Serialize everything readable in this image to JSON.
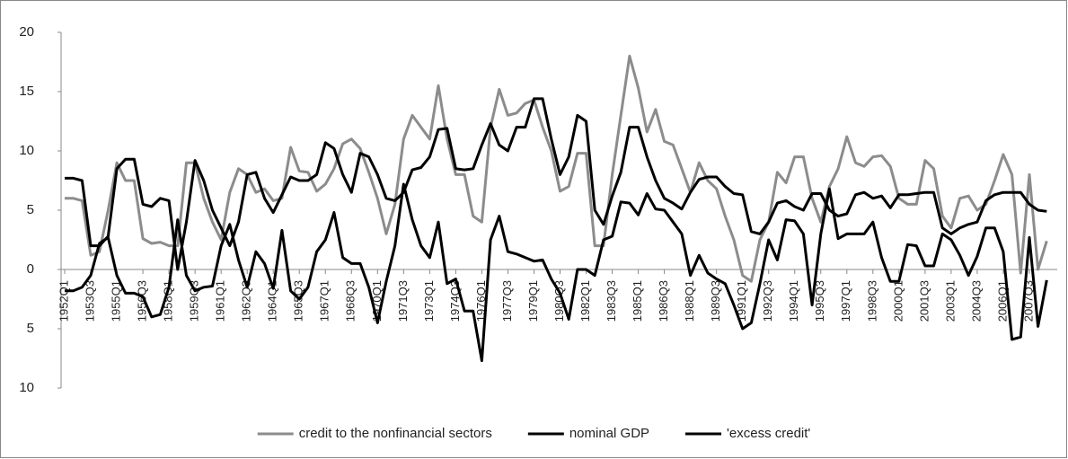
{
  "chart_data": {
    "type": "line",
    "categories": [
      "1952Q1",
      null,
      null,
      "1953Q3",
      null,
      null,
      "1955Q1",
      null,
      null,
      "1956Q3",
      null,
      null,
      "1958Q1",
      null,
      null,
      "1959Q3",
      null,
      null,
      "1961Q1",
      null,
      null,
      "1962Q3",
      null,
      null,
      "1964Q1",
      null,
      null,
      "1965Q3",
      null,
      null,
      "1967Q1",
      null,
      null,
      "1968Q3",
      null,
      null,
      "1970Q1",
      null,
      null,
      "1971Q3",
      null,
      null,
      "1973Q1",
      null,
      null,
      "1974Q3",
      null,
      null,
      "1976Q1",
      null,
      null,
      "1977Q3",
      null,
      null,
      "1979Q1",
      null,
      null,
      "1980Q3",
      null,
      null,
      "1982Q1",
      null,
      null,
      "1983Q3",
      null,
      null,
      "1985Q1",
      null,
      null,
      "1986Q3",
      null,
      null,
      "1988Q1",
      null,
      null,
      "1989Q3",
      null,
      null,
      "1991Q1",
      null,
      null,
      "1992Q3",
      null,
      null,
      "1994Q1",
      null,
      null,
      "1995Q3",
      null,
      null,
      "1997Q1",
      null,
      null,
      "1998Q3",
      null,
      null,
      "2000Q1",
      null,
      null,
      "2001Q3",
      null,
      null,
      "2003Q1",
      null,
      null,
      "2004Q3",
      null,
      null,
      "2006Q1",
      null,
      null,
      "2007Q3",
      null,
      null
    ],
    "series": [
      {
        "name": "credit to the nonfinancial sectors",
        "color": "#8c8c8c",
        "values": [
          6,
          6,
          5.8,
          1.2,
          1.5,
          5,
          9,
          7.5,
          7.5,
          2.6,
          2.2,
          2.3,
          2,
          2,
          9,
          9,
          6,
          4,
          2.5,
          6.5,
          8.5,
          8,
          6.5,
          6.8,
          5.8,
          6,
          10.3,
          8.3,
          8.2,
          6.6,
          7.2,
          8.5,
          10.6,
          11,
          10.2,
          8.2,
          6,
          3,
          5.5,
          11,
          13,
          12,
          11,
          15.5,
          11,
          8,
          8,
          4.5,
          4,
          12,
          15.2,
          13,
          13.2,
          14,
          14.3,
          12,
          10,
          6.6,
          7,
          9.8,
          9.8,
          2,
          2,
          8,
          13,
          18,
          15.3,
          11.6,
          13.5,
          10.8,
          10.5,
          8.5,
          6.5,
          9,
          7.5,
          6.8,
          4.5,
          2.5,
          -0.5,
          -1,
          2.5,
          4,
          8.2,
          7.3,
          9.5,
          9.5,
          6,
          4,
          7,
          8.5,
          11.2,
          9,
          8.7,
          9.5,
          9.6,
          8.7,
          6,
          5.5,
          5.5,
          9.2,
          8.5,
          4.5,
          3.5,
          6,
          6.2,
          5,
          5.5,
          7.5,
          9.7,
          8,
          -0.3,
          8,
          0,
          2.4
        ]
      },
      {
        "name": "nominal GDP",
        "color": "#000000",
        "values": [
          7.7,
          7.7,
          7.5,
          2,
          2,
          2.8,
          8.5,
          9.3,
          9.3,
          5.5,
          5.3,
          6,
          5.8,
          0,
          4,
          9.2,
          7.5,
          5,
          3.5,
          2,
          4,
          8,
          8.2,
          6,
          4.8,
          6.3,
          7.8,
          7.5,
          7.5,
          8,
          10.7,
          10.2,
          8,
          6.5,
          9.8,
          9.5,
          8,
          6,
          5.8,
          6.5,
          8.4,
          8.6,
          9.5,
          11.8,
          11.9,
          8.5,
          8.4,
          8.5,
          10.5,
          12.3,
          10.5,
          10,
          12,
          12,
          14.4,
          14.4,
          11,
          8,
          9.5,
          13,
          12.5,
          5,
          3.8,
          6.2,
          8.2,
          12,
          12,
          9.5,
          7.5,
          6,
          5.6,
          5.1,
          6.5,
          7.6,
          7.8,
          7.8,
          7,
          6.4,
          6.3,
          3.2,
          3,
          4,
          5.6,
          5.8,
          5.3,
          5,
          6.4,
          6.4,
          5,
          4.5,
          4.7,
          6.3,
          6.5,
          6,
          6.2,
          5.2,
          6.3,
          6.3,
          6.4,
          6.5,
          6.5,
          3.5,
          3,
          3.5,
          3.8,
          4,
          5.8,
          6.3,
          6.5,
          6.5,
          6.5,
          5.5,
          5,
          4.9
        ]
      },
      {
        "name": "'excess credit'",
        "color": "#000000",
        "values": [
          -1.8,
          -1.8,
          -1.5,
          -0.5,
          2.2,
          2.7,
          -0.5,
          -2,
          -2,
          -2.3,
          -4,
          -3.8,
          -1.5,
          4.2,
          -0.5,
          -1.8,
          -1.5,
          -1.4,
          2,
          3.8,
          0.8,
          -1.5,
          1.5,
          0.5,
          -1.6,
          3.3,
          -1.8,
          -2.5,
          -1.5,
          1.5,
          2.5,
          4.8,
          1,
          0.5,
          0.5,
          -1.5,
          -4.5,
          -1,
          2,
          7.2,
          4.2,
          2,
          1,
          4,
          -1.2,
          -0.8,
          -3.5,
          -3.5,
          -7.7,
          2.5,
          4.5,
          1.5,
          1.3,
          1,
          0.7,
          0.8,
          -0.8,
          -2,
          -4.2,
          0,
          0,
          -0.5,
          2.5,
          2.8,
          5.7,
          5.6,
          4.6,
          6.4,
          5.1,
          5,
          4,
          3,
          -0.5,
          1.2,
          -0.3,
          -0.8,
          -1.2,
          -3,
          -5,
          -4.5,
          -1.2,
          2.5,
          0.8,
          4.2,
          4.1,
          3,
          -3,
          3,
          6.8,
          2.6,
          3,
          3,
          3,
          4,
          1,
          -1,
          -1,
          2.1,
          2,
          0.3,
          0.3,
          3,
          2.5,
          1.2,
          -0.5,
          1.1,
          3.5,
          3.5,
          1.5,
          -5.9,
          -5.7,
          2.7,
          -4.8,
          -0.9
        ]
      }
    ],
    "ylim": [
      -10,
      20
    ],
    "yticks": [
      20,
      15,
      10,
      5,
      0,
      {
        "value": -5,
        "label": "5"
      },
      {
        "value": -10,
        "label": "10"
      }
    ],
    "legend": "bottom"
  }
}
